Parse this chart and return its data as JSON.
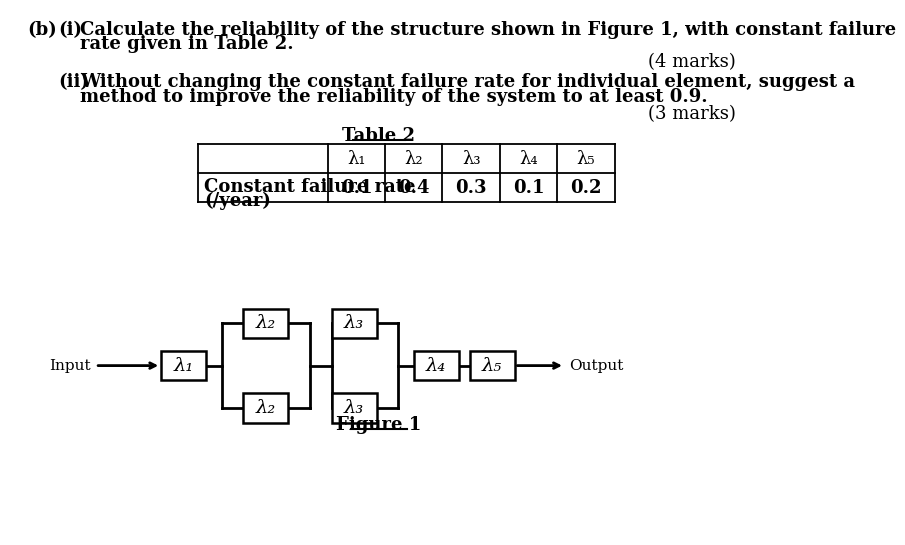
{
  "bg_color": "#ffffff",
  "text_color": "#000000",
  "part_b": "(b)",
  "part_i": "(i)",
  "part_i_line1": "Calculate the reliability of the structure shown in Figure 1, with constant failure",
  "part_i_line2": "rate given in Table 2.",
  "marks_i": "(4 marks)",
  "part_ii": "(ii)",
  "part_ii_line1": "Without changing the constant failure rate for individual element, suggest a",
  "part_ii_line2": "method to improve the reliability of the system to at least 0.9.",
  "marks_ii": "(3 marks)",
  "table_title": "Table 2",
  "table_headers": [
    "λ₁",
    "λ₂",
    "λ₃",
    "λ₄",
    "λ₅"
  ],
  "table_row_label_line1": "Constant failure rate",
  "table_row_label_line2": "(/year)",
  "table_values": [
    "0.1",
    "0.4",
    "0.3",
    "0.1",
    "0.2"
  ],
  "figure_caption": "Figure 1",
  "input_label": "Input",
  "output_label": "Output",
  "lam1": "λ₁",
  "lam2": "λ₂",
  "lam3": "λ₃",
  "lam4": "λ₄",
  "lam5": "λ₅",
  "fs_main": 13,
  "fs_small": 11
}
